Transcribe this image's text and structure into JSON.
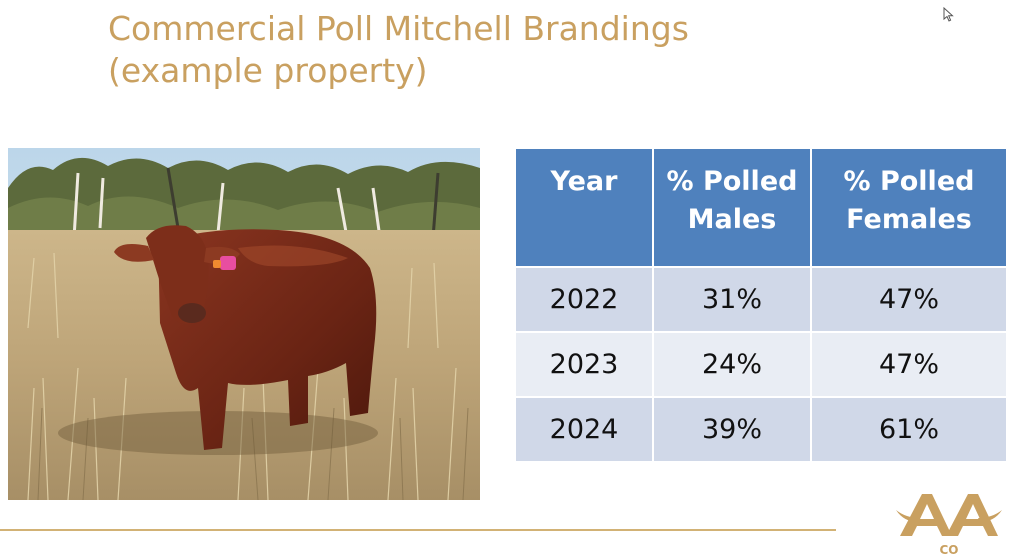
{
  "slide": {
    "title_line1": "Commercial Poll Mitchell Brandings",
    "title_line2": "(example property)"
  },
  "photo": {
    "subject": "red-bull-in-paddock",
    "tag_color": "#e84ea0"
  },
  "table": {
    "headers": {
      "year": "Year",
      "males_line1": "% Polled",
      "males_line2": "Males",
      "females_line1": "% Polled",
      "females_line2": "Females"
    },
    "rows": [
      {
        "year": "2022",
        "males": "31%",
        "females": "47%"
      },
      {
        "year": "2023",
        "males": "24%",
        "females": "47%"
      },
      {
        "year": "2024",
        "males": "39%",
        "females": "61%"
      }
    ],
    "header_color": "#4f81bd",
    "row_color_odd": "#d0d8e8",
    "row_color_even": "#e9edf4"
  },
  "logo": {
    "mark": "AA",
    "sub": "CO",
    "color": "#c9a060"
  }
}
